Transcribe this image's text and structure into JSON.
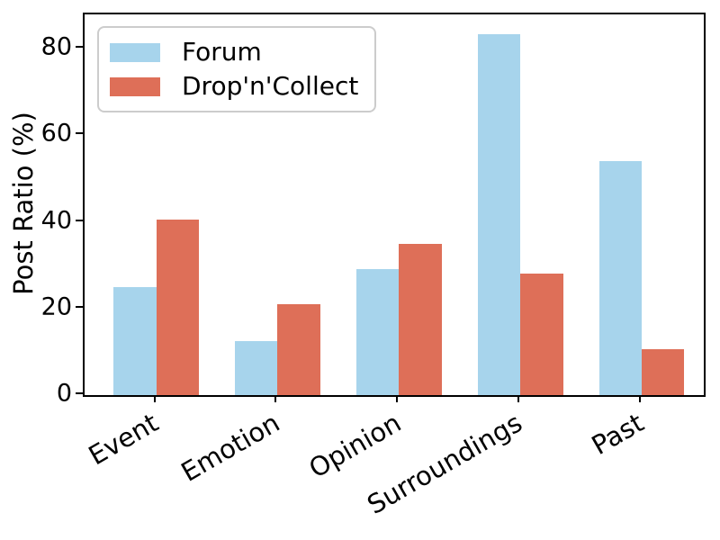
{
  "chart_data": {
    "type": "bar",
    "title": "",
    "xlabel": "",
    "ylabel": "Post Ratio (%)",
    "categories": [
      "Event",
      "Emotion",
      "Opinion",
      "Surroundings",
      "Past"
    ],
    "series": [
      {
        "name": "Forum",
        "color": "#A7D4EC",
        "values": [
          25,
          12.5,
          29,
          83.3,
          54
        ]
      },
      {
        "name": "Drop'n'Collect",
        "color": "#DE6F58",
        "values": [
          40.5,
          21,
          35,
          28,
          10.5
        ]
      }
    ],
    "yticks": [
      0,
      20,
      40,
      60,
      80
    ],
    "ylim": [
      0,
      87.9
    ],
    "xlim": [
      -0.59,
      4.51
    ],
    "bar_width": 0.35,
    "grid": false,
    "legend_position": "upper left",
    "xtick_rotation_deg": 30,
    "axis_color": "#000000",
    "background_color": "#ffffff"
  }
}
